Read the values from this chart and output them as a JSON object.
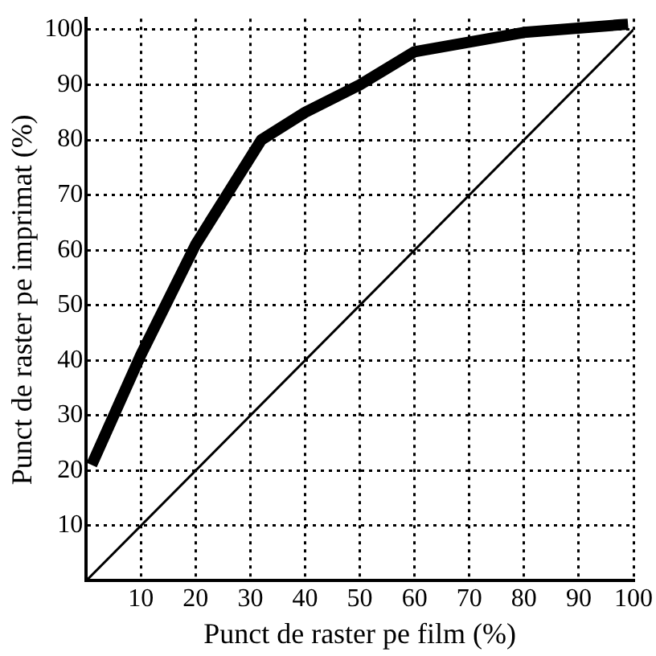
{
  "chart_data": {
    "type": "line",
    "xlabel": "Punct de raster pe film (%)",
    "ylabel": "Punct de raster pe imprimat (%)",
    "xlim": [
      0,
      100
    ],
    "ylim": [
      0,
      102
    ],
    "xticks": [
      10,
      20,
      30,
      40,
      50,
      60,
      70,
      80,
      90,
      100
    ],
    "yticks": [
      10,
      20,
      30,
      40,
      50,
      60,
      70,
      80,
      90,
      100
    ],
    "grid": true,
    "legend": false,
    "marker": "none",
    "line_style": "solid",
    "series": [
      {
        "color": "#000000",
        "x": [
          1,
          10,
          20,
          32,
          40,
          50,
          60,
          80,
          99
        ],
        "values": [
          21,
          41,
          61,
          80,
          85,
          90,
          96,
          99.5,
          101
        ]
      },
      {
        "color": "#000000",
        "x": [
          0,
          100
        ],
        "values": [
          0,
          100
        ]
      }
    ]
  }
}
